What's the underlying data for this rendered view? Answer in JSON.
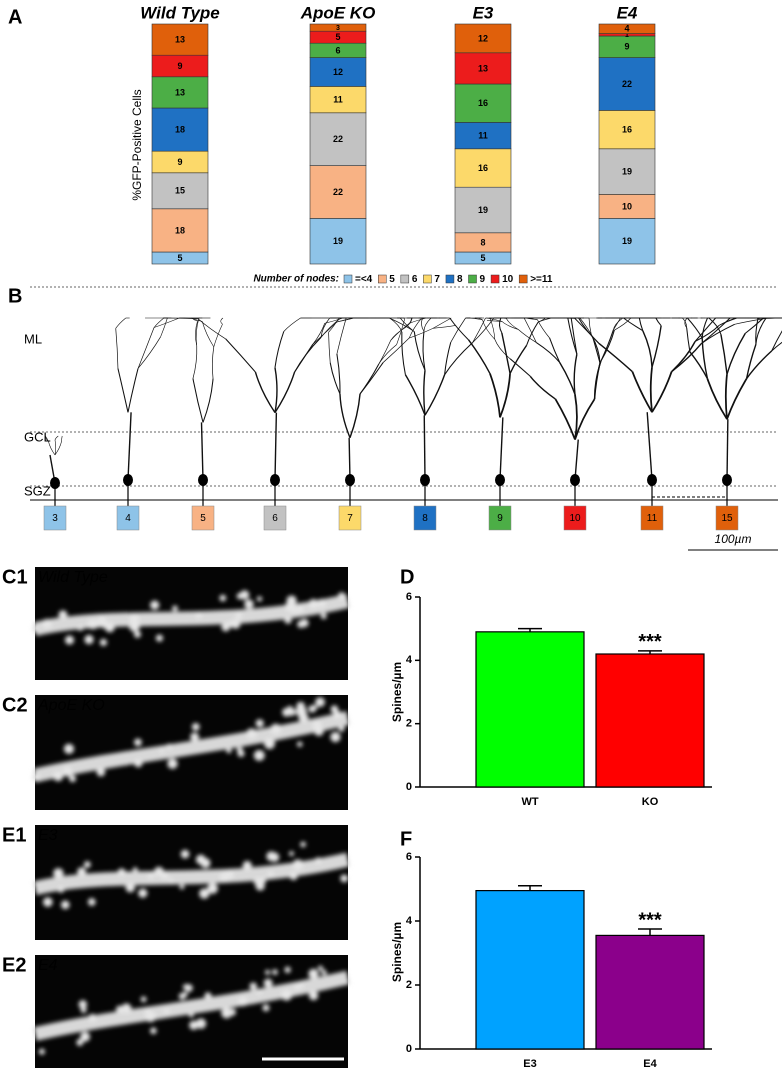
{
  "chart_data": [
    {
      "type": "stacked_bar",
      "panel": "A",
      "ylabel": "%GFP-Positive Cells",
      "categories": [
        "Wild Type",
        "ApoE KO",
        "E3",
        "E4"
      ],
      "category_colors": [
        "#21b321",
        "#e8141a",
        "#2aa8e8",
        "#b41fd4"
      ],
      "legend_title": "Number of nodes:",
      "series": [
        {
          "name": "=<4",
          "color": "#8ec3e8",
          "values": [
            5,
            19,
            5,
            19
          ]
        },
        {
          "name": "5",
          "color": "#f8b284",
          "values": [
            18,
            22,
            8,
            10
          ]
        },
        {
          "name": "6",
          "color": "#c2c2c2",
          "values": [
            15,
            22,
            19,
            19
          ]
        },
        {
          "name": "7",
          "color": "#fcd96a",
          "values": [
            9,
            11,
            16,
            16
          ]
        },
        {
          "name": "8",
          "color": "#1f71c3",
          "values": [
            18,
            12,
            11,
            22
          ]
        },
        {
          "name": "9",
          "color": "#4cae46",
          "values": [
            13,
            6,
            16,
            9
          ]
        },
        {
          "name": "10",
          "color": "#ec1c1c",
          "values": [
            9,
            5,
            13,
            1
          ]
        },
        {
          "name": ">=11",
          "color": "#e0600b",
          "values": [
            13,
            3,
            12,
            4
          ]
        }
      ]
    },
    {
      "type": "bar",
      "panel": "D",
      "ylabel": "Spines/µm",
      "categories": [
        "WT",
        "KO"
      ],
      "values": [
        4.9,
        4.2
      ],
      "errors": [
        0.1,
        0.1
      ],
      "colors": [
        "#00ff00",
        "#ff0000"
      ],
      "annotation": "***",
      "ylim": [
        0,
        6
      ],
      "yticks": [
        0,
        2,
        4,
        6
      ]
    },
    {
      "type": "bar",
      "panel": "F",
      "ylabel": "Spines/µm",
      "categories": [
        "E3",
        "E4"
      ],
      "values": [
        4.95,
        3.55
      ],
      "errors": [
        0.15,
        0.2
      ],
      "colors": [
        "#00a2ff",
        "#8b008b"
      ],
      "annotation": "***",
      "ylim": [
        0,
        6
      ],
      "yticks": [
        0,
        2,
        4,
        6
      ]
    }
  ],
  "panel_b": {
    "panel": "B",
    "layers": [
      "ML",
      "GCL",
      "SGZ"
    ],
    "scale_bar": "100µm",
    "neurons": [
      {
        "label": "3",
        "color": "#8ec3e8"
      },
      {
        "label": "4",
        "color": "#8ec3e8"
      },
      {
        "label": "5",
        "color": "#f8b284"
      },
      {
        "label": "6",
        "color": "#c2c2c2"
      },
      {
        "label": "7",
        "color": "#fcd96a"
      },
      {
        "label": "8",
        "color": "#1f71c3"
      },
      {
        "label": "9",
        "color": "#4cae46"
      },
      {
        "label": "10",
        "color": "#ec1c1c"
      },
      {
        "label": "11",
        "color": "#e0600b"
      },
      {
        "label": "15",
        "color": "#e0600b"
      }
    ]
  },
  "images": [
    {
      "panel": "C1",
      "label": "Wild Type",
      "color": "#21c321"
    },
    {
      "panel": "C2",
      "label": "ApoE KO",
      "color": "#e8141a"
    },
    {
      "panel": "E1",
      "label": "E3",
      "color": "#2aa8e8"
    },
    {
      "panel": "E2",
      "label": "E4",
      "color": "#e040e8"
    }
  ]
}
